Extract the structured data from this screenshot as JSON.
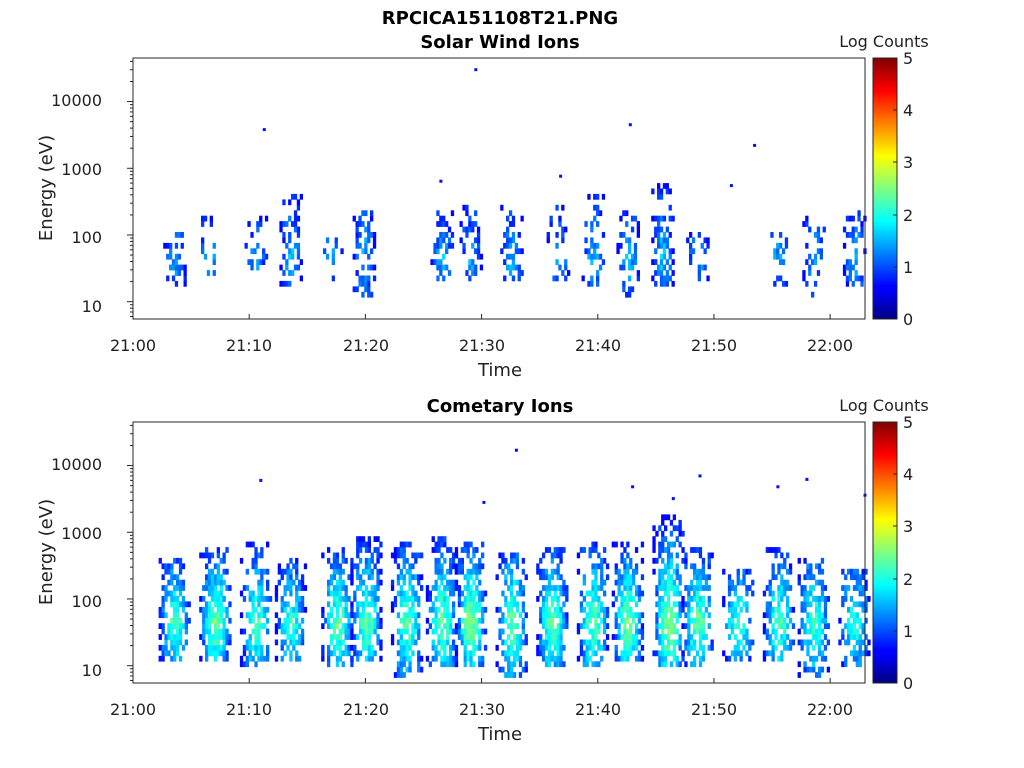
{
  "figure_title": "RPCICA151108T21.PNG",
  "chart_data": [
    {
      "type": "heatmap",
      "title": "Solar Wind Ions",
      "xlabel": "Time",
      "ylabel": "Energy (eV)",
      "x_ticks": [
        "21:00",
        "21:10",
        "21:20",
        "21:30",
        "21:40",
        "21:50",
        "22:00"
      ],
      "y_ticks": [
        "10",
        "100",
        "1000",
        "10000"
      ],
      "y_scale": "log",
      "y_range_eV": [
        5.5,
        45000
      ],
      "x_range_min": [
        0,
        63
      ],
      "colorbar": {
        "label": "Log Counts",
        "ticks": [
          "0",
          "1",
          "2",
          "3",
          "4",
          "5"
        ],
        "range": [
          0,
          5
        ],
        "colormap": "jet"
      },
      "bursts": [
        {
          "t": 3.5,
          "lo": 18,
          "hi": 110,
          "peak": 1.0,
          "hf": 0.6
        },
        {
          "t": 6.5,
          "lo": 25,
          "hi": 180,
          "peak": 0.9,
          "hf": 0.4
        },
        {
          "t": 10.5,
          "lo": 30,
          "hi": 200,
          "peak": 0.9,
          "hf": 0.3
        },
        {
          "t": 13.5,
          "lo": 18,
          "hi": 400,
          "peak": 1.0,
          "hf": 0.5
        },
        {
          "t": 17.0,
          "lo": 20,
          "hi": 110,
          "peak": 0.9,
          "hf": 0.3
        },
        {
          "t": 19.8,
          "lo": 12,
          "hi": 250,
          "peak": 1.0,
          "hf": 0.7
        },
        {
          "t": 26.5,
          "lo": 20,
          "hi": 220,
          "peak": 1.0,
          "hf": 0.6
        },
        {
          "t": 29.0,
          "lo": 20,
          "hi": 280,
          "peak": 1.0,
          "hf": 0.6
        },
        {
          "t": 32.5,
          "lo": 20,
          "hi": 260,
          "peak": 1.0,
          "hf": 0.5
        },
        {
          "t": 36.5,
          "lo": 20,
          "hi": 300,
          "peak": 0.9,
          "hf": 0.4
        },
        {
          "t": 39.5,
          "lo": 18,
          "hi": 400,
          "peak": 1.0,
          "hf": 0.5
        },
        {
          "t": 42.5,
          "lo": 12,
          "hi": 250,
          "peak": 1.0,
          "hf": 0.5
        },
        {
          "t": 45.5,
          "lo": 18,
          "hi": 600,
          "peak": 1.1,
          "hf": 0.8
        },
        {
          "t": 48.5,
          "lo": 20,
          "hi": 120,
          "peak": 1.0,
          "hf": 0.4
        },
        {
          "t": 55.5,
          "lo": 18,
          "hi": 110,
          "peak": 1.0,
          "hf": 0.4
        },
        {
          "t": 58.5,
          "lo": 12,
          "hi": 200,
          "peak": 0.9,
          "hf": 0.4
        },
        {
          "t": 62.0,
          "lo": 18,
          "hi": 300,
          "peak": 1.0,
          "hf": 0.5
        }
      ],
      "isolated": [
        {
          "t": 11.3,
          "e": 3800
        },
        {
          "t": 29.5,
          "e": 30000
        },
        {
          "t": 42.8,
          "e": 4500
        },
        {
          "t": 53.5,
          "e": 2200
        },
        {
          "t": 51.5,
          "e": 550
        },
        {
          "t": 26.5,
          "e": 640
        },
        {
          "t": 36.8,
          "e": 760
        }
      ]
    },
    {
      "type": "heatmap",
      "title": "Cometary Ions",
      "xlabel": "Time",
      "ylabel": "Energy (eV)",
      "x_ticks": [
        "21:00",
        "21:10",
        "21:20",
        "21:30",
        "21:40",
        "21:50",
        "22:00"
      ],
      "y_ticks": [
        "10",
        "100",
        "1000",
        "10000"
      ],
      "y_scale": "log",
      "y_range_eV": [
        5.5,
        45000
      ],
      "x_range_min": [
        0,
        63
      ],
      "colorbar": {
        "label": "Log Counts",
        "ticks": [
          "0",
          "1",
          "2",
          "3",
          "4",
          "5"
        ],
        "range": [
          0,
          5
        ],
        "colormap": "jet"
      },
      "bursts": [
        {
          "t": 3.5,
          "lo": 12,
          "hi": 450,
          "peak": 1.9,
          "hf": 0.8
        },
        {
          "t": 7.0,
          "lo": 12,
          "hi": 600,
          "peak": 2.1,
          "hf": 0.9
        },
        {
          "t": 10.5,
          "lo": 10,
          "hi": 700,
          "peak": 1.8,
          "hf": 0.8
        },
        {
          "t": 13.5,
          "lo": 12,
          "hi": 400,
          "peak": 1.7,
          "hf": 0.8
        },
        {
          "t": 17.5,
          "lo": 10,
          "hi": 600,
          "peak": 2.0,
          "hf": 0.8
        },
        {
          "t": 20.0,
          "lo": 12,
          "hi": 800,
          "peak": 2.0,
          "hf": 0.9
        },
        {
          "t": 23.5,
          "lo": 6.5,
          "hi": 700,
          "peak": 1.9,
          "hf": 0.9
        },
        {
          "t": 26.5,
          "lo": 10,
          "hi": 800,
          "peak": 2.0,
          "hf": 0.9
        },
        {
          "t": 29.0,
          "lo": 10,
          "hi": 700,
          "peak": 2.2,
          "hf": 0.9
        },
        {
          "t": 32.5,
          "lo": 6.5,
          "hi": 500,
          "peak": 2.0,
          "hf": 0.8
        },
        {
          "t": 36.0,
          "lo": 10,
          "hi": 600,
          "peak": 2.0,
          "hf": 0.9
        },
        {
          "t": 39.5,
          "lo": 10,
          "hi": 700,
          "peak": 2.0,
          "hf": 0.8
        },
        {
          "t": 42.5,
          "lo": 12,
          "hi": 700,
          "peak": 2.1,
          "hf": 0.9
        },
        {
          "t": 46.0,
          "lo": 10,
          "hi": 2000,
          "peak": 2.2,
          "hf": 0.9
        },
        {
          "t": 48.5,
          "lo": 10,
          "hi": 600,
          "peak": 2.0,
          "hf": 0.8
        },
        {
          "t": 52.0,
          "lo": 12,
          "hi": 300,
          "peak": 1.8,
          "hf": 0.7
        },
        {
          "t": 55.5,
          "lo": 12,
          "hi": 600,
          "peak": 1.9,
          "hf": 0.8
        },
        {
          "t": 58.5,
          "lo": 6.5,
          "hi": 400,
          "peak": 1.8,
          "hf": 0.8
        },
        {
          "t": 62.0,
          "lo": 10,
          "hi": 300,
          "peak": 1.7,
          "hf": 0.8
        }
      ],
      "isolated": [
        {
          "t": 33.0,
          "e": 17000
        },
        {
          "t": 11.0,
          "e": 6000
        },
        {
          "t": 48.8,
          "e": 7000
        },
        {
          "t": 55.5,
          "e": 4800
        },
        {
          "t": 58.0,
          "e": 6200
        },
        {
          "t": 63.0,
          "e": 3600
        },
        {
          "t": 43.0,
          "e": 4800
        },
        {
          "t": 30.2,
          "e": 2800
        },
        {
          "t": 46.5,
          "e": 3200
        }
      ]
    }
  ]
}
